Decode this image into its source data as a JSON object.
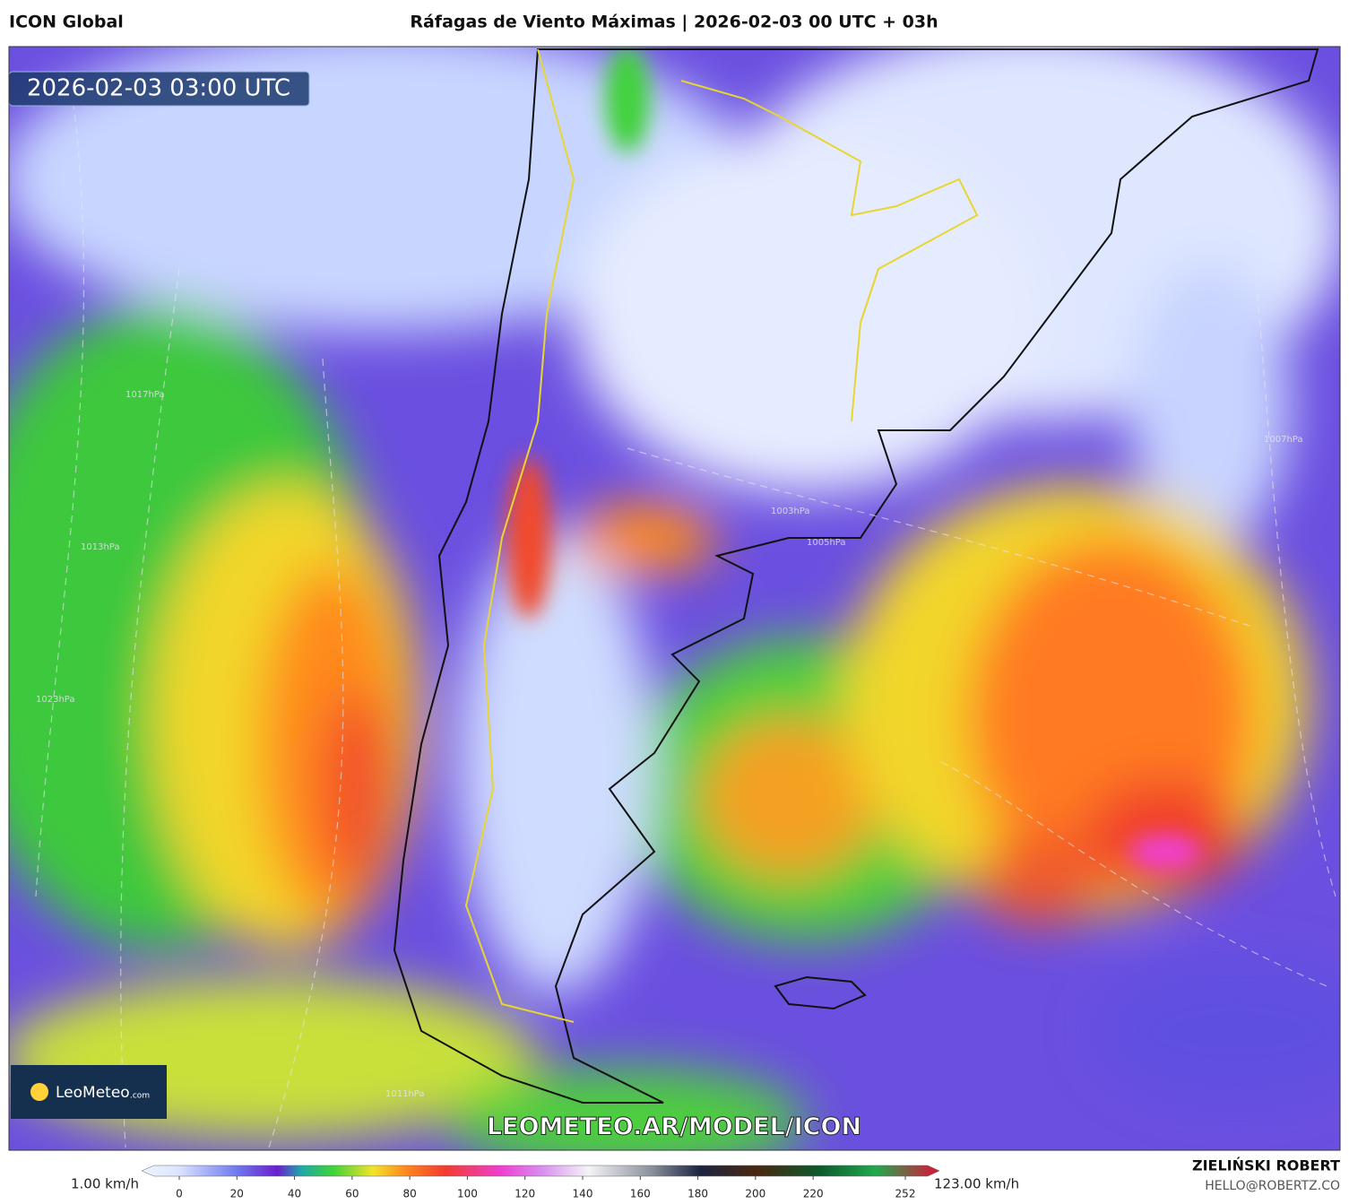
{
  "header": {
    "model": "ICON Global",
    "title": "Ráfagas de Viento Máximas | 2026-02-03 00 UTC + 03h"
  },
  "map": {
    "valid_time": "2026-02-03 03:00 UTC",
    "logo": {
      "name": "LeoMeteo",
      "suffix": ".com"
    },
    "watermark": "LEOMETEO.AR/MODEL/ICON",
    "isobar_labels": [
      "1017hPa",
      "1013hPa",
      "1023hPa",
      "1003hPa",
      "1005hPa",
      "1007hPa",
      "1011hPa"
    ]
  },
  "colorbar": {
    "min_label": "1.00 km/h",
    "max_label": "123.00 km/h",
    "ticks": [
      0,
      20,
      40,
      60,
      80,
      100,
      120,
      140,
      160,
      180,
      200,
      220,
      252
    ]
  },
  "footer": {
    "author": "ZIELIŃSKI ROBERT",
    "contact": "HELLO@ROBERTZ.CO"
  }
}
